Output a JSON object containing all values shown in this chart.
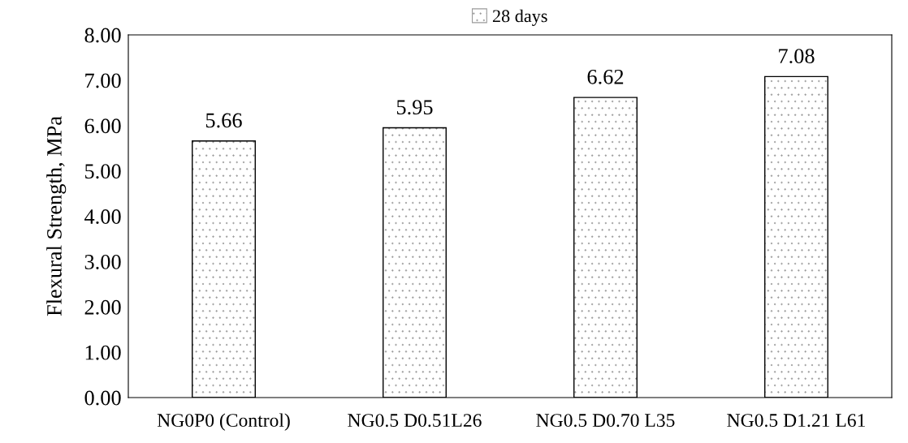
{
  "chart_data": {
    "type": "bar",
    "ylabel": "Flexural Strength, MPa",
    "categories": [
      "NG0P0 (Control)",
      "NG0.5 D0.51L26",
      "NG0.5 D0.70 L35",
      "NG0.5 D1.21 L61"
    ],
    "series": [
      {
        "name": "28 days",
        "color": "#ffffff",
        "values": [
          5.66,
          5.95,
          6.62,
          7.08
        ]
      }
    ],
    "ylim": [
      0,
      8
    ],
    "yticks": [
      {
        "value": 0,
        "label": "0.00"
      },
      {
        "value": 1,
        "label": "1.00"
      },
      {
        "value": 2,
        "label": "2.00"
      },
      {
        "value": 3,
        "label": "3.00"
      },
      {
        "value": 4,
        "label": "4.00"
      },
      {
        "value": 5,
        "label": "5.00"
      },
      {
        "value": 6,
        "label": "6.00"
      },
      {
        "value": 7,
        "label": "7.00"
      },
      {
        "value": 8,
        "label": "8.00"
      }
    ],
    "data_labels": true,
    "legend": "top",
    "grid": false
  }
}
